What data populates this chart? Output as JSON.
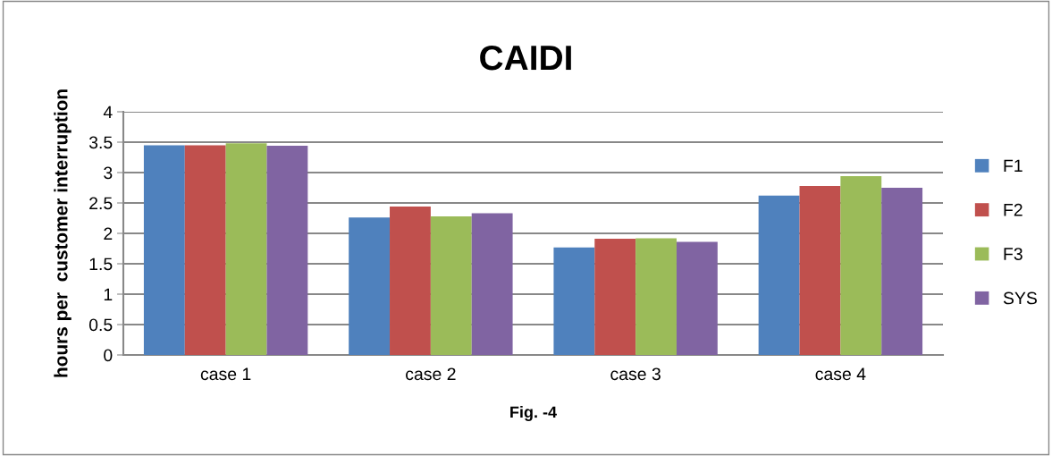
{
  "chart_data": {
    "type": "bar",
    "title": "CAIDI",
    "xlabel": "Fig. -4",
    "ylabel": "hours per  customer interruption",
    "categories": [
      "case 1",
      "case 2",
      "case 3",
      "case 4"
    ],
    "series": [
      {
        "name": "F1",
        "color": "#4f81bd",
        "values": [
          3.45,
          2.26,
          1.77,
          2.62
        ]
      },
      {
        "name": "F2",
        "color": "#c0504d",
        "values": [
          3.45,
          2.44,
          1.91,
          2.78
        ]
      },
      {
        "name": "F3",
        "color": "#9bbb59",
        "values": [
          3.48,
          2.28,
          1.92,
          2.94
        ]
      },
      {
        "name": "SYS",
        "color": "#8064a2",
        "values": [
          3.44,
          2.33,
          1.86,
          2.75
        ]
      }
    ],
    "ylim": [
      0,
      4
    ],
    "yticks": [
      0,
      0.5,
      1,
      1.5,
      2,
      2.5,
      3,
      3.5,
      4
    ],
    "grid": "y",
    "legend": "right"
  }
}
